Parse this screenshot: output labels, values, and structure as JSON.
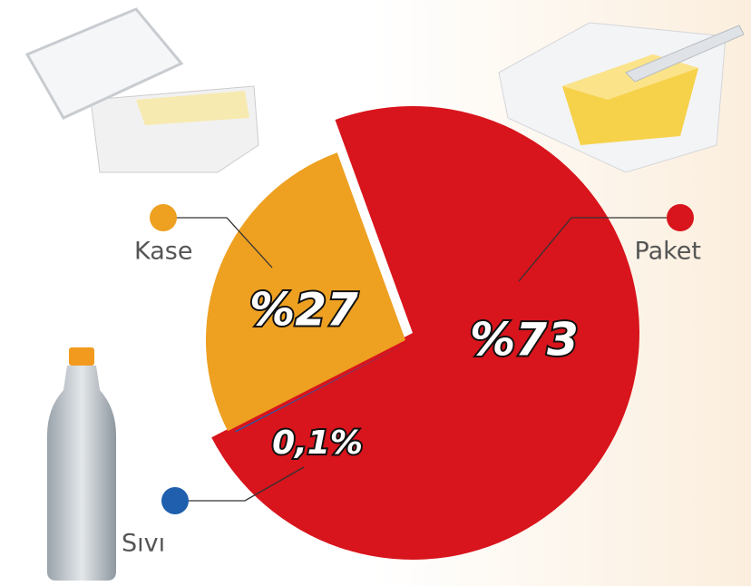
{
  "chart_data": {
    "type": "pie",
    "categories": [
      "Paket",
      "Sıvı",
      "Kase"
    ],
    "values": [
      73,
      0.1,
      27
    ],
    "value_labels": [
      "%73",
      "0,1%",
      "%27"
    ],
    "colors": [
      "#d8141c",
      "#1f5fae",
      "#eea021"
    ]
  }
}
